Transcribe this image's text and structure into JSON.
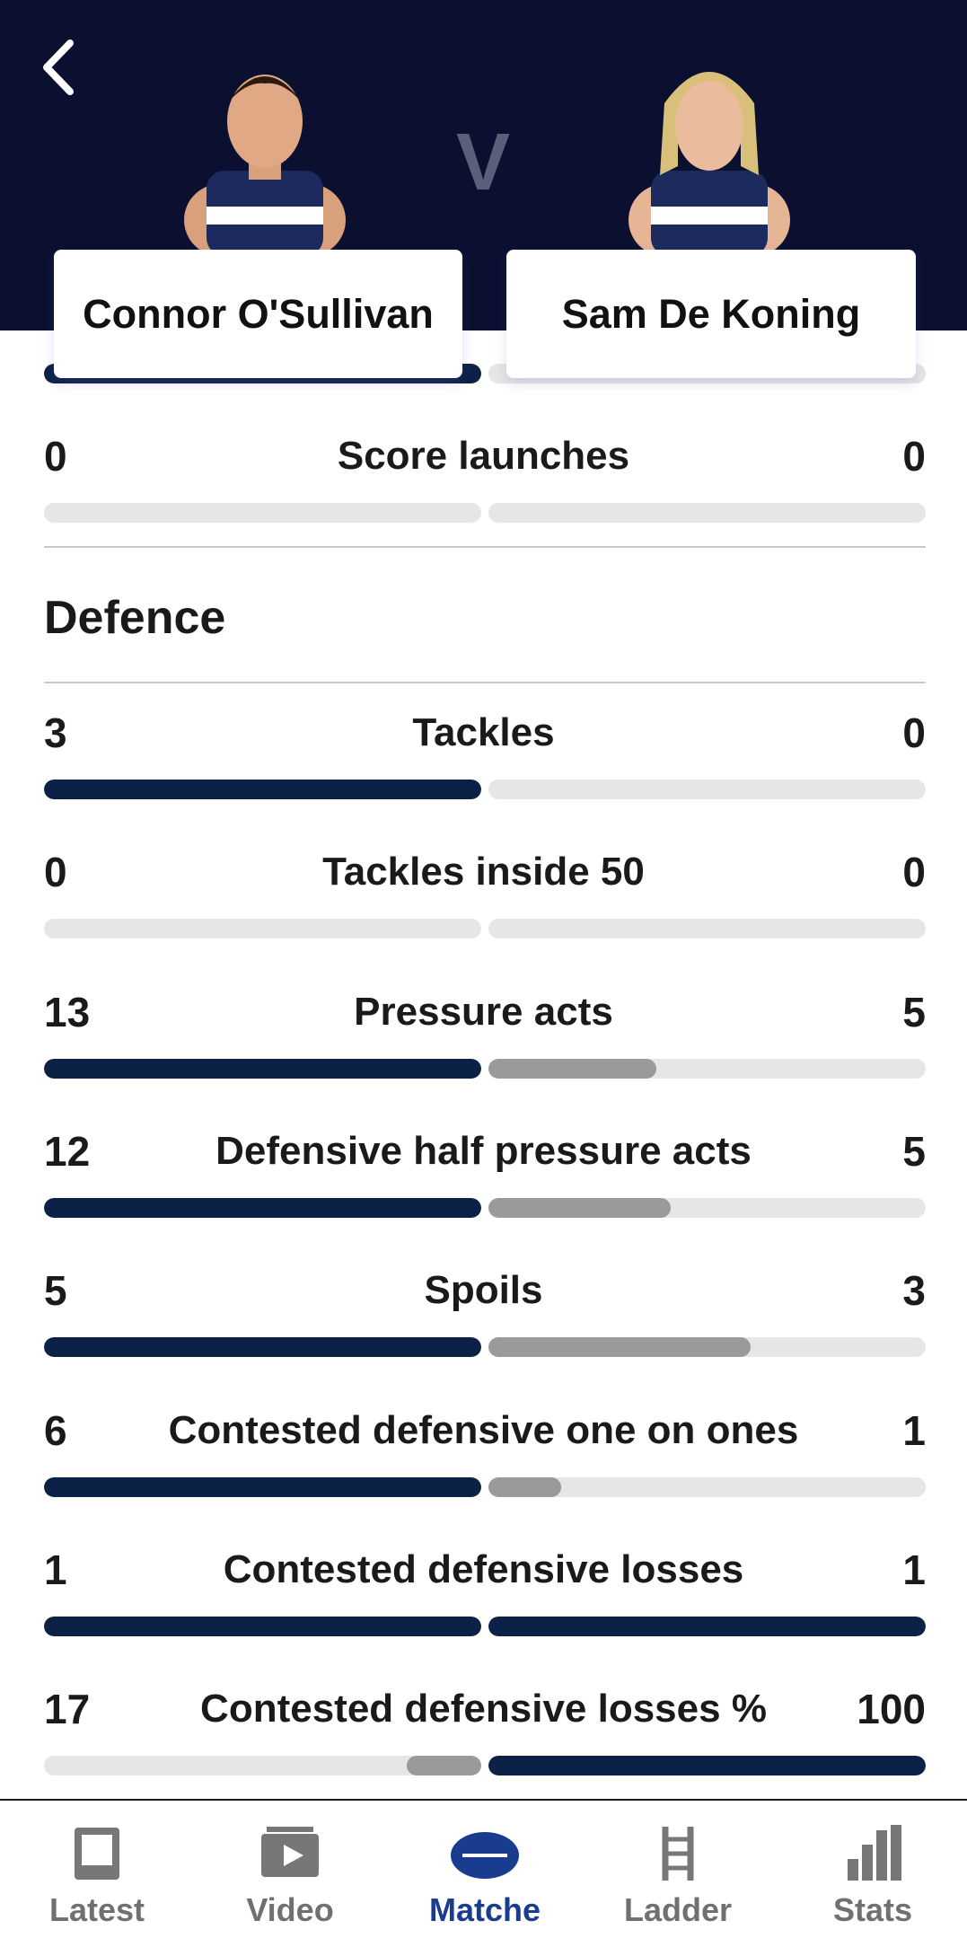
{
  "header": {
    "players": [
      "Connor O'Sullivan",
      "Sam De Koning"
    ],
    "versus": "V"
  },
  "stats": {
    "rows": [
      {
        "left": 0,
        "label": "Score launches",
        "right": 0
      }
    ],
    "sections": [
      {
        "title": "Defence",
        "rows": [
          {
            "left": 3,
            "label": "Tackles",
            "right": 0
          },
          {
            "left": 0,
            "label": "Tackles inside 50",
            "right": 0
          },
          {
            "left": 13,
            "label": "Pressure acts",
            "right": 5
          },
          {
            "left": 12,
            "label": "Defensive half pressure acts",
            "right": 5
          },
          {
            "left": 5,
            "label": "Spoils",
            "right": 3
          },
          {
            "left": 6,
            "label": "Contested defensive one on ones",
            "right": 1
          },
          {
            "left": 1,
            "label": "Contested defensive losses",
            "right": 1
          },
          {
            "left": 17,
            "label": "Contested defensive losses %",
            "right": 100
          }
        ]
      }
    ]
  },
  "nav": {
    "items": [
      "Latest",
      "Video",
      "Matche",
      "Ladder",
      "Stats"
    ],
    "active": 2
  }
}
